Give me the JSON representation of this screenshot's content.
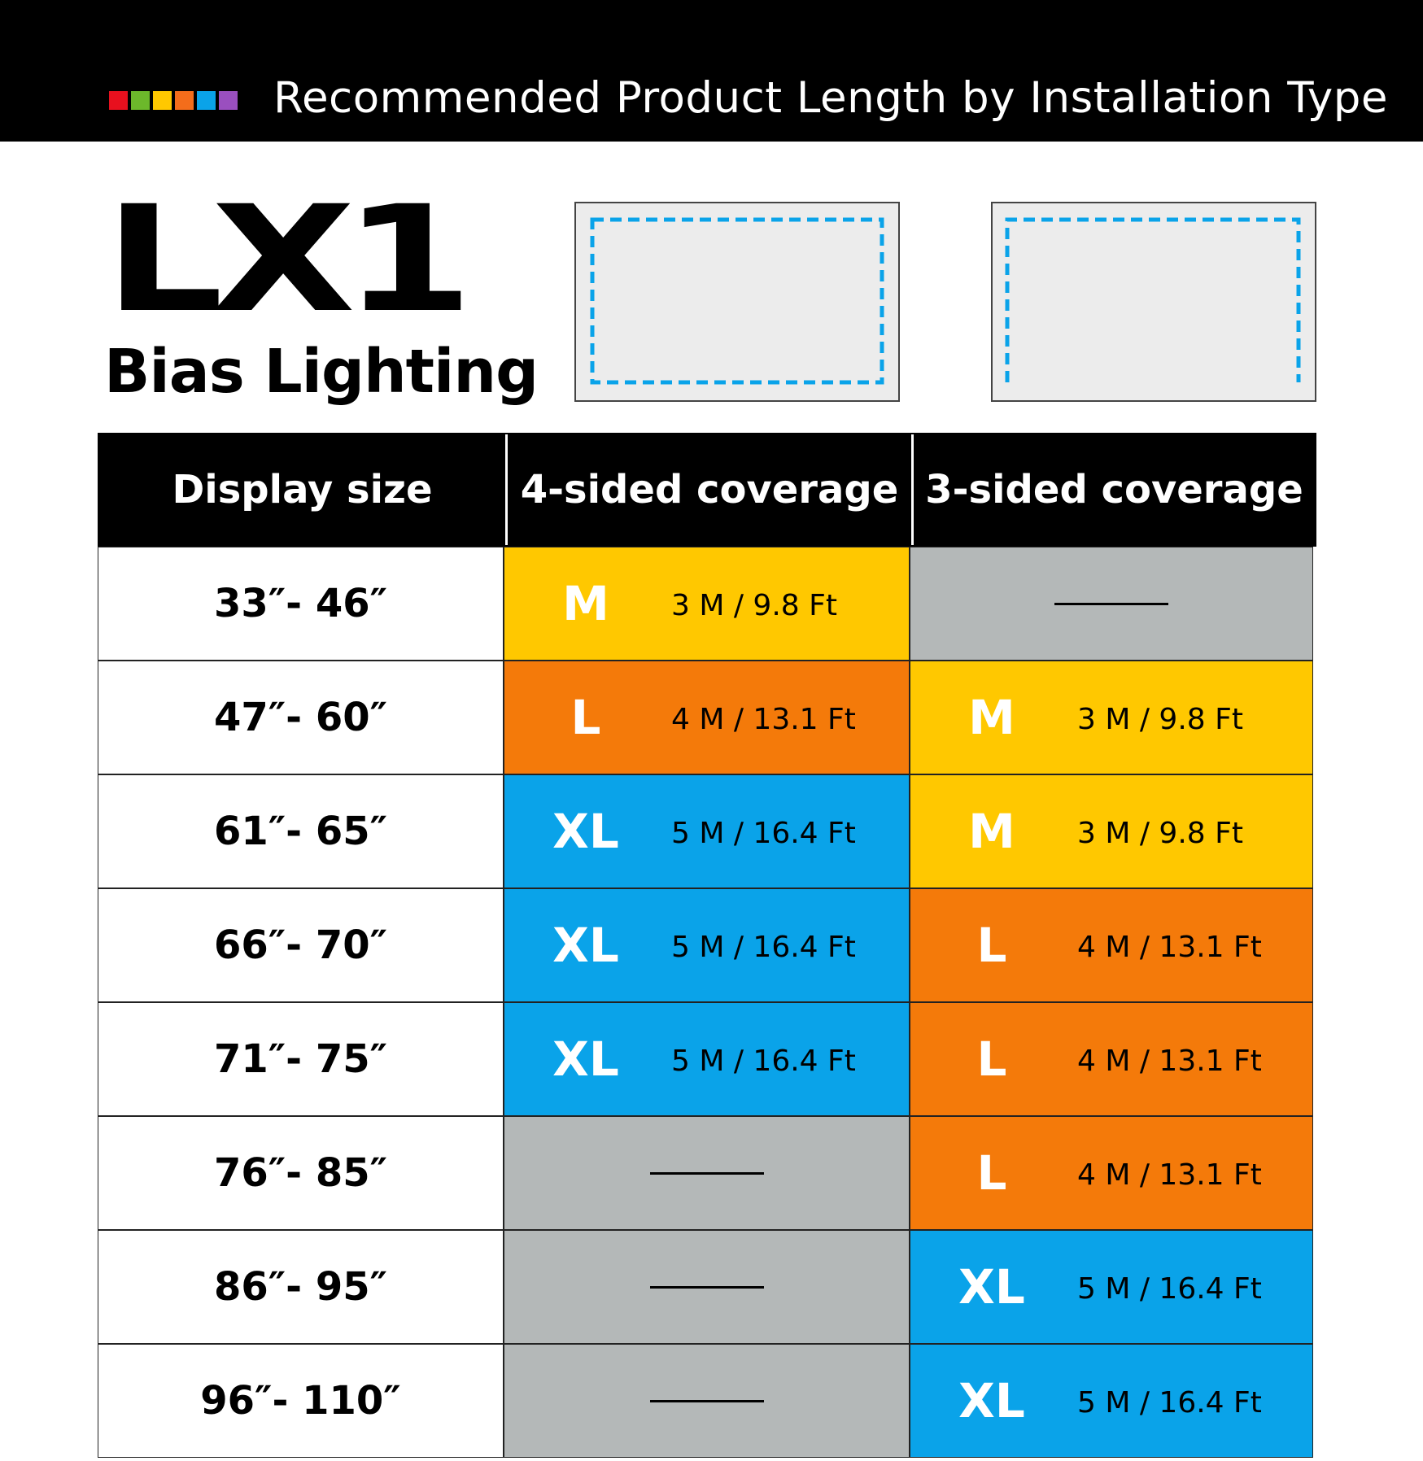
{
  "header": {
    "title": "Recommended Product Length by Installation Type",
    "swatch_colors": [
      "#e8101e",
      "#6cb82b",
      "#ffc800",
      "#f46d1b",
      "#0aa3e9",
      "#9a4fbf"
    ]
  },
  "brand": {
    "logo_text": "LX1",
    "product_name": "Bias Lighting"
  },
  "diagrams": {
    "accent_color": "#0aa3e9",
    "items": [
      {
        "icon": "four-sided-dashed-outline"
      },
      {
        "icon": "three-sided-dashed-outline"
      }
    ]
  },
  "colors": {
    "M": "#ffc800",
    "L": "#f47a0a",
    "XL": "#0aa3e9",
    "none": "#b4b8b8"
  },
  "table": {
    "headers": [
      "Display size",
      "4-sided coverage",
      "3-sided coverage"
    ],
    "rows": [
      {
        "size": "33″- 46″",
        "four": {
          "code": "M",
          "length": "3 M / 9.8 Ft"
        },
        "three": null
      },
      {
        "size": "47″- 60″",
        "four": {
          "code": "L",
          "length": "4 M / 13.1 Ft"
        },
        "three": {
          "code": "M",
          "length": "3 M / 9.8 Ft"
        }
      },
      {
        "size": "61″- 65″",
        "four": {
          "code": "XL",
          "length": "5 M / 16.4 Ft"
        },
        "three": {
          "code": "M",
          "length": "3 M / 9.8 Ft"
        }
      },
      {
        "size": "66″- 70″",
        "four": {
          "code": "XL",
          "length": "5 M / 16.4 Ft"
        },
        "three": {
          "code": "L",
          "length": "4 M / 13.1 Ft"
        }
      },
      {
        "size": "71″- 75″",
        "four": {
          "code": "XL",
          "length": "5 M / 16.4 Ft"
        },
        "three": {
          "code": "L",
          "length": "4 M / 13.1 Ft"
        }
      },
      {
        "size": "76″- 85″",
        "four": null,
        "three": {
          "code": "L",
          "length": "4 M / 13.1 Ft"
        }
      },
      {
        "size": "86″- 95″",
        "four": null,
        "three": {
          "code": "XL",
          "length": "5 M / 16.4 Ft"
        }
      },
      {
        "size": "96″- 110″",
        "four": null,
        "three": {
          "code": "XL",
          "length": "5 M / 16.4 Ft"
        }
      }
    ]
  }
}
